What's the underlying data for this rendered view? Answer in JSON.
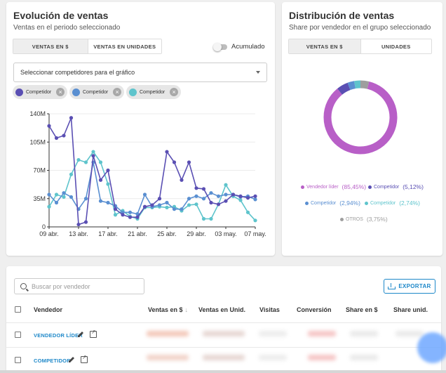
{
  "ventas_card": {
    "title": "Evolución de ventas",
    "subtitle": "Ventas en el periodo seleccionado",
    "tabs": [
      "VENTAS EN $",
      "VENTAS EN UNIDADES"
    ],
    "toggle_label": "Acumulado",
    "select_placeholder": "Seleccionar competidores para el gráfico",
    "chips": [
      {
        "label": "Competidor",
        "color": "#5a4fb3"
      },
      {
        "label": "Competidor",
        "color": "#5a8fd1"
      },
      {
        "label": "Competidor",
        "color": "#5ec4cc"
      }
    ]
  },
  "chart_data": {
    "type": "line",
    "title": "Evolución de ventas",
    "x": [
      "09 abr.",
      "10 abr.",
      "11 abr.",
      "12 abr.",
      "13 abr.",
      "14 abr.",
      "15 abr.",
      "16 abr.",
      "17 abr.",
      "18 abr.",
      "19 abr.",
      "20 abr.",
      "21 abr.",
      "22 abr.",
      "23 abr.",
      "24 abr.",
      "25 abr.",
      "26 abr.",
      "27 abr.",
      "28 abr.",
      "29 abr.",
      "30 abr.",
      "01 may.",
      "02 may.",
      "03 may.",
      "04 may.",
      "05 may.",
      "06 may.",
      "07 may."
    ],
    "x_tick_labels": [
      "09 abr.",
      "13 abr.",
      "17 abr.",
      "21 abr.",
      "25 abr.",
      "29 abr.",
      "03 may.",
      "07 may."
    ],
    "y_ticks": [
      "0",
      "35M",
      "70M",
      "105M",
      "140M"
    ],
    "ylim": [
      0,
      140
    ],
    "series": [
      {
        "name": "Competidor",
        "color": "#5a4fb3",
        "values": [
          125,
          110,
          113,
          135,
          3,
          6,
          88,
          58,
          70,
          22,
          15,
          12,
          12,
          25,
          27,
          35,
          93,
          80,
          58,
          80,
          48,
          47,
          30,
          28,
          32,
          40,
          38,
          36,
          38
        ]
      },
      {
        "name": "Competidor",
        "color": "#5a8fd1",
        "values": [
          40,
          30,
          42,
          37,
          22,
          35,
          80,
          32,
          30,
          26,
          18,
          18,
          16,
          40,
          25,
          27,
          30,
          22,
          22,
          35,
          38,
          35,
          42,
          38,
          40,
          40,
          37,
          38,
          34
        ]
      },
      {
        "name": "Competidor",
        "color": "#5ec4cc",
        "values": [
          25,
          40,
          37,
          65,
          83,
          80,
          93,
          80,
          53,
          15,
          20,
          13,
          10,
          24,
          24,
          25,
          24,
          25,
          20,
          27,
          28,
          10,
          10,
          28,
          52,
          38,
          33,
          18,
          8
        ]
      }
    ]
  },
  "distribucion_card": {
    "title": "Distribución de ventas",
    "subtitle": "Share por vendedor en el grupo seleccionado",
    "tabs": [
      "VENTAS EN $",
      "UNIDADES"
    ]
  },
  "donut_data": {
    "type": "pie",
    "slices": [
      {
        "label": "Vendedor líder",
        "pct": "(85,45%)",
        "value": 85.45,
        "color": "#b85fc7"
      },
      {
        "label": "Competidor",
        "pct": "(5,12%)",
        "value": 5.12,
        "color": "#5a4fb3"
      },
      {
        "label": "Competidor",
        "pct": "(2,94%)",
        "value": 2.94,
        "color": "#5a8fd1"
      },
      {
        "label": "Competidor",
        "pct": "(2,74%)",
        "value": 2.74,
        "color": "#5ec4cc"
      },
      {
        "label": "OTROS",
        "pct": "(3,75%)",
        "value": 3.75,
        "color": "#9e9e9e"
      }
    ]
  },
  "table_card": {
    "search_placeholder": "Buscar por vendedor",
    "export_label": "EXPORTAR",
    "columns": [
      "Vendedor",
      "Ventas en $",
      "Ventas en Unid.",
      "Visitas",
      "Conversión",
      "Share en $",
      "Share unid."
    ],
    "sort_arrow": "↓",
    "rows": [
      {
        "vendor": "VENDEDOR LÍDER"
      },
      {
        "vendor": "COMPETIDOR"
      }
    ]
  }
}
